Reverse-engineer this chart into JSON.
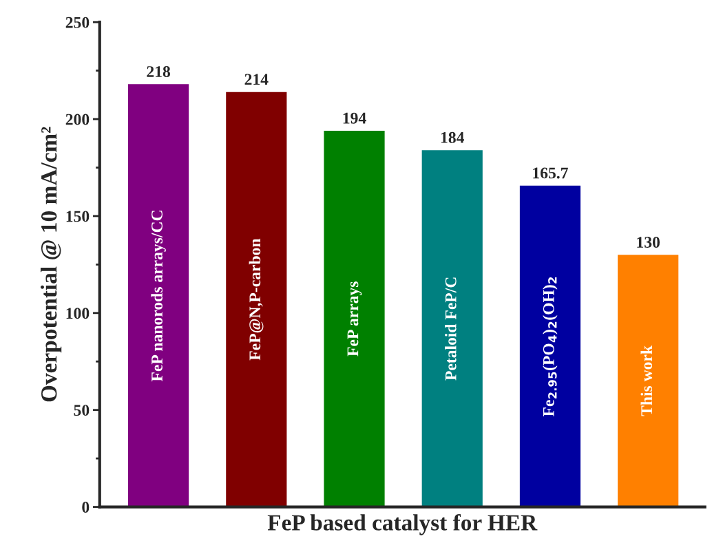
{
  "chart_data": {
    "type": "bar",
    "xlabel": "FeP based catalyst for HER",
    "ylabel": "Overpotential @ 10 mA/cm²",
    "categories": [
      "FeP nanorods arrays/CC",
      "FeP@N,P-carbon",
      "FeP arrays",
      "Petaloid FeP/C",
      "Fe$_{2.95}$(PO$_{4}$)$_{2}$(OH)$_{2}$",
      "This work"
    ],
    "values": [
      218,
      214,
      194,
      184,
      165.7,
      130
    ],
    "colors": [
      "#800080",
      "#800000",
      "#008000",
      "#008080",
      "#0000a0",
      "#ff8000"
    ],
    "ylim": [
      0,
      250
    ],
    "yticks": [
      0,
      50,
      100,
      150,
      200,
      250
    ],
    "data_labels": true,
    "grid": false,
    "legend": false
  }
}
